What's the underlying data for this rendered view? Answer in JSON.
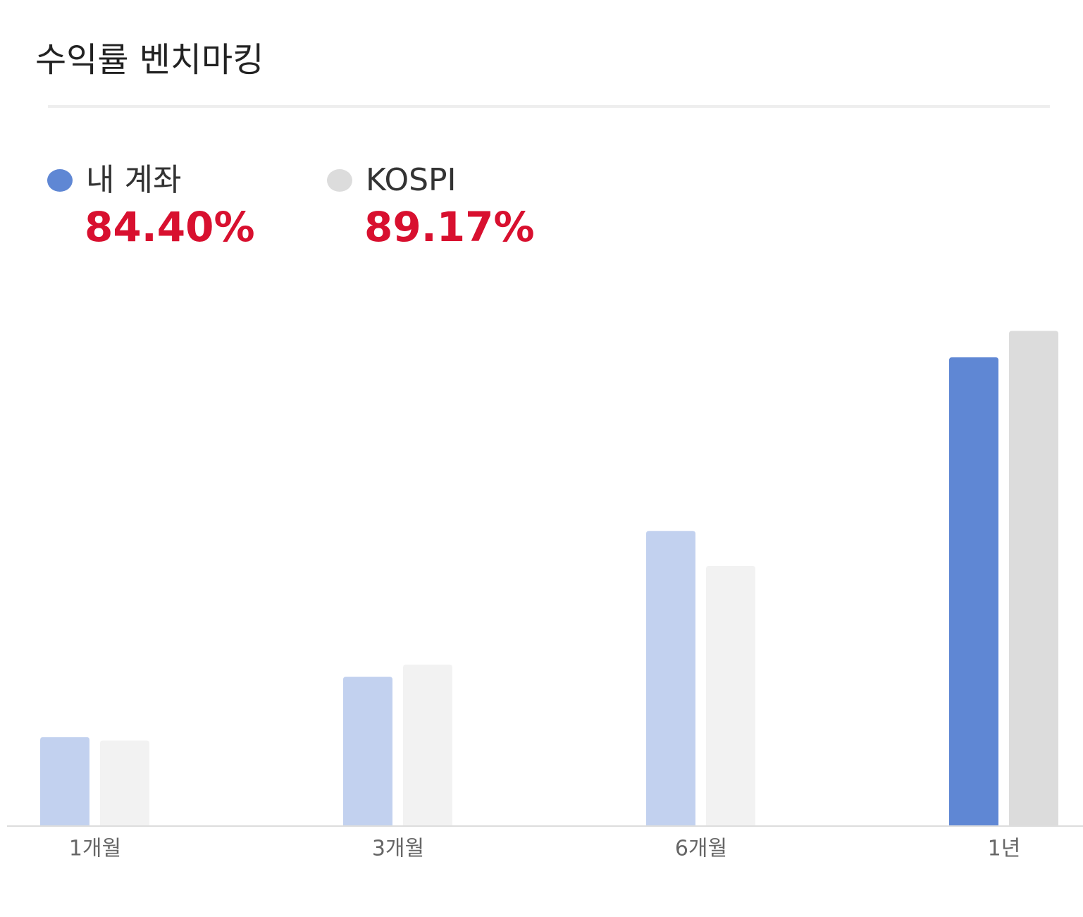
{
  "chart_data": {
    "type": "bar",
    "title": "수익률 벤치마킹",
    "categories": [
      "1개월",
      "3개월",
      "6개월",
      "1년"
    ],
    "series": [
      {
        "name": "내 계좌",
        "color": "#5f87d4",
        "values": [
          15.9,
          26.8,
          53.1,
          84.4
        ],
        "value_labels": [
          null,
          null,
          null,
          "84.40%"
        ]
      },
      {
        "name": "KOSPI",
        "color": "#dcdcdc",
        "values": [
          15.3,
          29.0,
          46.8,
          89.17
        ],
        "value_labels": [
          null,
          null,
          null,
          "89.17%"
        ]
      }
    ],
    "ylim": [
      0,
      90
    ],
    "grid": false
  }
}
